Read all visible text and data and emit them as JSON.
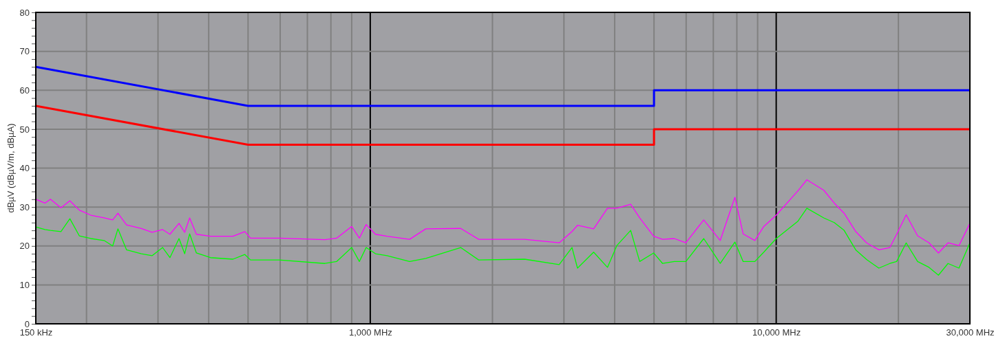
{
  "chart_data": {
    "type": "line",
    "ylabel": "dBµV (dBµV/m, dBµA)",
    "log": "x",
    "grid": true,
    "marker": "none",
    "xlim": [
      150,
      30000
    ],
    "ylim": [
      0,
      80
    ],
    "xticks": [
      {
        "value": 150,
        "label": "150 kHz"
      },
      {
        "value": 200,
        "label": null
      },
      {
        "value": 300,
        "label": null
      },
      {
        "value": 400,
        "label": null
      },
      {
        "value": 500,
        "label": null
      },
      {
        "value": 600,
        "label": null
      },
      {
        "value": 700,
        "label": null
      },
      {
        "value": 800,
        "label": null
      },
      {
        "value": 900,
        "label": null
      },
      {
        "value": 1000,
        "label": "1,000 MHz"
      },
      {
        "value": 2000,
        "label": null
      },
      {
        "value": 3000,
        "label": null
      },
      {
        "value": 4000,
        "label": null
      },
      {
        "value": 5000,
        "label": null
      },
      {
        "value": 6000,
        "label": null
      },
      {
        "value": 7000,
        "label": null
      },
      {
        "value": 8000,
        "label": null
      },
      {
        "value": 9000,
        "label": null
      },
      {
        "value": 10000,
        "label": "10,000 MHz"
      },
      {
        "value": 20000,
        "label": null
      },
      {
        "value": 30000,
        "label": "30,000 MHz"
      }
    ],
    "yticks": [
      0,
      {
        "value": 2,
        "label": null
      },
      {
        "value": 4,
        "label": null
      },
      {
        "value": 6,
        "label": null
      },
      {
        "value": 8,
        "label": null
      },
      10,
      {
        "value": 12,
        "label": null
      },
      {
        "value": 14,
        "label": null
      },
      {
        "value": 16,
        "label": null
      },
      {
        "value": 18,
        "label": null
      },
      20,
      {
        "value": 22,
        "label": null
      },
      {
        "value": 24,
        "label": null
      },
      {
        "value": 26,
        "label": null
      },
      {
        "value": 28,
        "label": null
      },
      30,
      {
        "value": 32,
        "label": null
      },
      {
        "value": 34,
        "label": null
      },
      {
        "value": 36,
        "label": null
      },
      {
        "value": 38,
        "label": null
      },
      40,
      {
        "value": 42,
        "label": null
      },
      {
        "value": 44,
        "label": null
      },
      {
        "value": 46,
        "label": null
      },
      {
        "value": 48,
        "label": null
      },
      50,
      {
        "value": 52,
        "label": null
      },
      {
        "value": 54,
        "label": null
      },
      {
        "value": 56,
        "label": null
      },
      {
        "value": 58,
        "label": null
      },
      60,
      {
        "value": 62,
        "label": null
      },
      {
        "value": 64,
        "label": null
      },
      {
        "value": 66,
        "label": null
      },
      {
        "value": 68,
        "label": null
      },
      70,
      {
        "value": 72,
        "label": null
      },
      {
        "value": 74,
        "label": null
      },
      {
        "value": 76,
        "label": null
      },
      {
        "value": 78,
        "label": null
      },
      80
    ],
    "x": [
      150,
      158,
      163,
      173,
      182,
      192,
      205,
      221,
      232,
      239,
      251,
      273,
      290,
      308,
      321,
      338,
      349,
      359,
      373,
      404,
      459,
      491,
      507,
      597,
      773,
      826,
      900,
      940,
      977,
      1030,
      1100,
      1250,
      1370,
      1670,
      1850,
      2400,
      2920,
      3140,
      3240,
      3550,
      3840,
      4050,
      4380,
      4610,
      4990,
      5250,
      5610,
      5990,
      6630,
      7280,
      7910,
      8290,
      8860,
      9320,
      10000,
      11300,
      11900,
      13100,
      13900,
      14700,
      15700,
      16700,
      17900,
      19050,
      19800,
      20900,
      22300,
      23800,
      25100,
      26500,
      28200,
      30000
    ],
    "series": [
      {
        "color": "#ff00ff",
        "values": [
          32,
          31,
          32,
          29.8,
          31.6,
          29.2,
          27.9,
          27.2,
          26.7,
          28.4,
          25.4,
          24.5,
          23.5,
          24.2,
          23,
          25.8,
          23.5,
          27.2,
          23,
          22.5,
          22.5,
          23.7,
          22,
          22,
          21.6,
          22,
          25,
          22,
          25.5,
          23,
          22.5,
          21.7,
          24.4,
          24.5,
          21.7,
          21.7,
          20.8,
          23.7,
          25.3,
          24.4,
          29.7,
          29.7,
          30.7,
          27.2,
          22.5,
          21.7,
          21.9,
          20.8,
          26.7,
          21.4,
          32.5,
          23.1,
          21.4,
          25,
          27.9,
          34.1,
          37,
          34.3,
          31,
          28.4,
          23.7,
          20.8,
          19,
          19.6,
          23,
          28,
          22.6,
          20.8,
          18.2,
          20.8,
          20.1,
          25.8
        ]
      },
      {
        "color": "#00ff00",
        "values": [
          24.9,
          24.2,
          24,
          23.7,
          27,
          22.6,
          21.9,
          21.4,
          20,
          24.4,
          19,
          18,
          17.5,
          19.6,
          17,
          21.9,
          18,
          23.1,
          18.2,
          17,
          16.6,
          17.8,
          16.4,
          16.4,
          15.5,
          16,
          19.6,
          16,
          19.6,
          18,
          17.5,
          16,
          16.8,
          19.6,
          16.4,
          16.6,
          15.2,
          19.6,
          14.3,
          18.4,
          14.5,
          20.1,
          24,
          16,
          18.2,
          15.5,
          16,
          16,
          21.9,
          15.5,
          21,
          16,
          16,
          18.4,
          21.9,
          26.3,
          29.7,
          27.2,
          26,
          24,
          19,
          16.5,
          14.3,
          15.5,
          16,
          20.8,
          16,
          14.5,
          12.5,
          15.5,
          14.3,
          20.8
        ]
      },
      {
        "color": "#ff0000",
        "x": [
          150,
          500,
          5000,
          5000,
          30000
        ],
        "values": [
          56,
          46,
          46,
          50,
          50
        ]
      },
      {
        "color": "#0000ff",
        "x": [
          150,
          500,
          5000,
          5000,
          30000
        ],
        "values": [
          66,
          56,
          56,
          60,
          60
        ]
      }
    ]
  }
}
